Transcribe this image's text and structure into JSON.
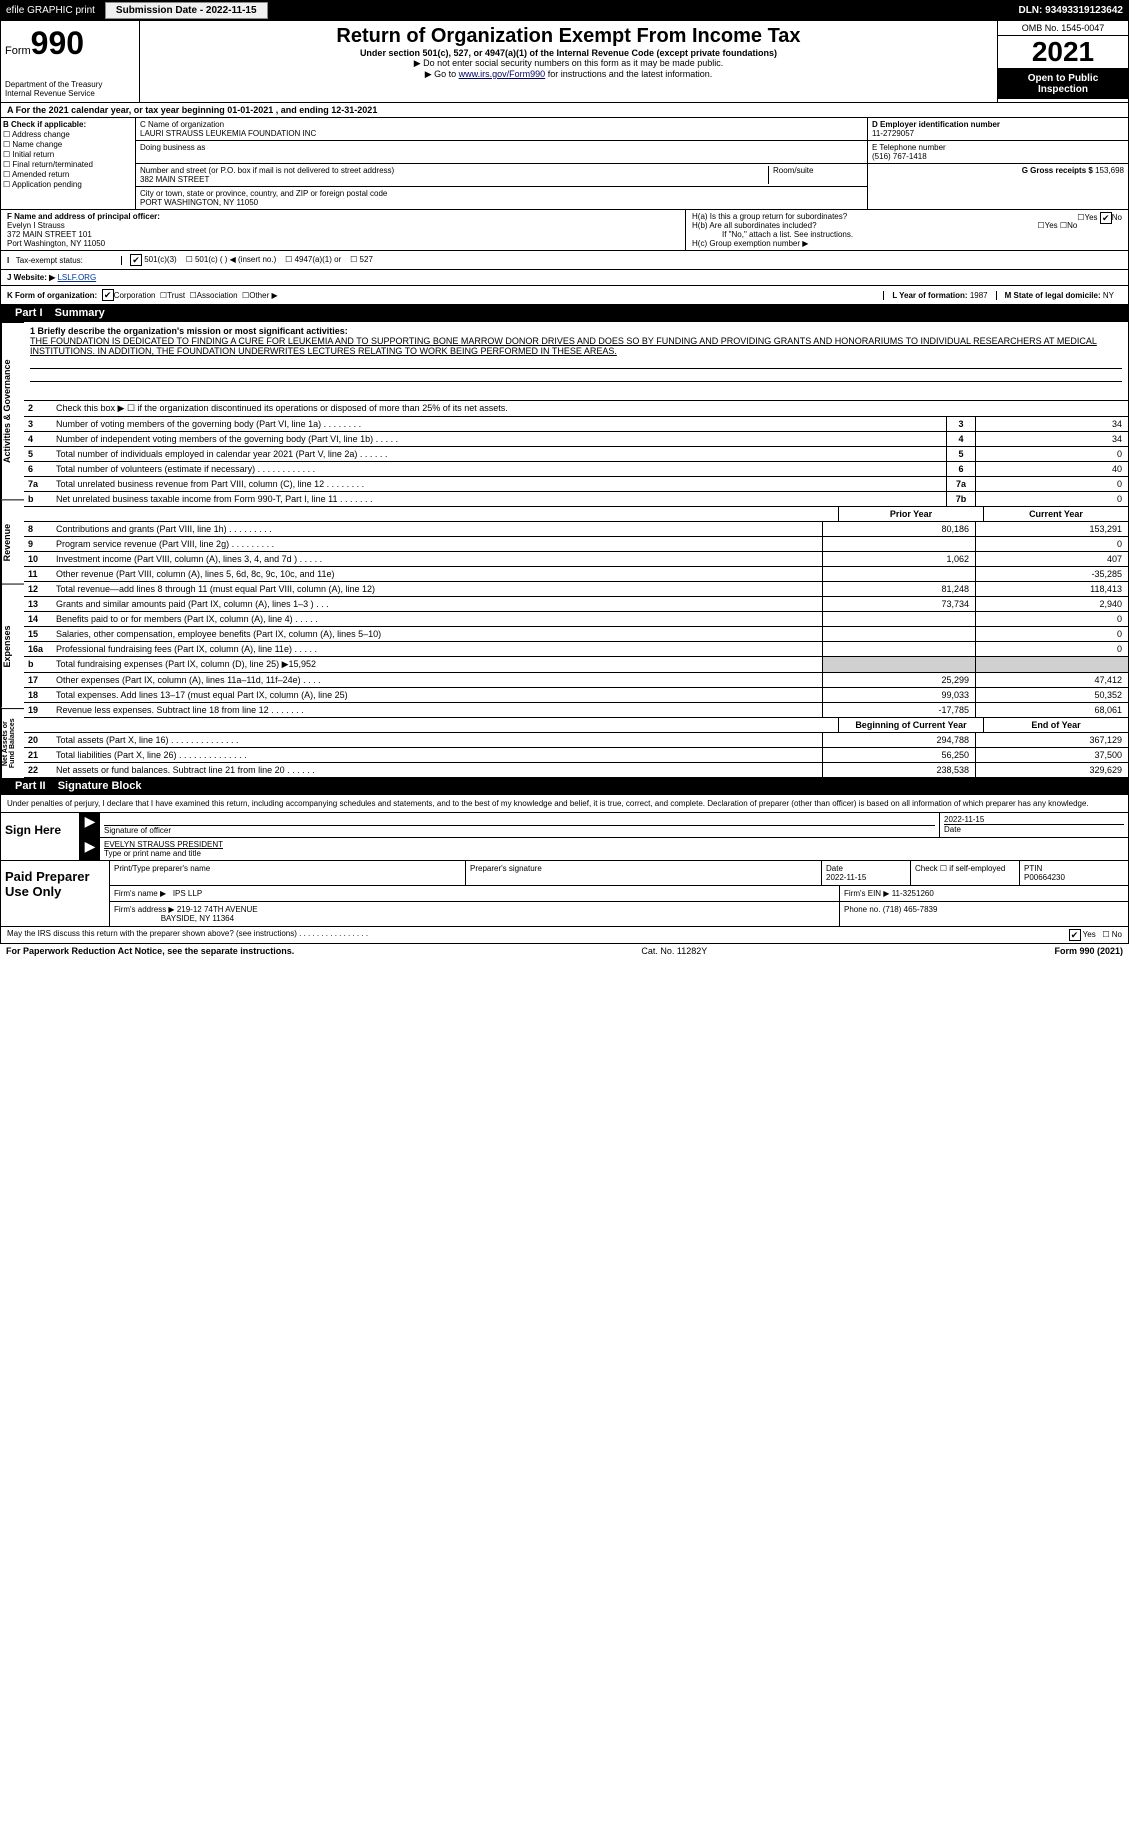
{
  "topbar": {
    "efile": "efile GRAPHIC print",
    "submission": "Submission Date - 2022-11-15",
    "dln": "DLN: 93493319123642"
  },
  "header": {
    "form_word": "Form",
    "form_num": "990",
    "title": "Return of Organization Exempt From Income Tax",
    "sub": "Under section 501(c), 527, or 4947(a)(1) of the Internal Revenue Code (except private foundations)",
    "note1": "▶ Do not enter social security numbers on this form as it may be made public.",
    "note2_pre": "▶ Go to ",
    "note2_link": "www.irs.gov/Form990",
    "note2_post": " for instructions and the latest information.",
    "dept": "Department of the Treasury",
    "irs": "Internal Revenue Service",
    "omb": "OMB No. 1545-0047",
    "year": "2021",
    "inspect": "Open to Public Inspection"
  },
  "rowA": "A For the 2021 calendar year, or tax year beginning 01-01-2021    , and ending 12-31-2021",
  "boxB": {
    "title": "B Check if applicable:",
    "opts": [
      "Address change",
      "Name change",
      "Initial return",
      "Final return/terminated",
      "Amended return",
      "Application pending"
    ]
  },
  "boxC": {
    "label": "C Name of organization",
    "name": "LAURI STRAUSS LEUKEMIA FOUNDATION INC",
    "dba": "Doing business as",
    "street_lbl": "Number and street (or P.O. box if mail is not delivered to street address)",
    "room": "Room/suite",
    "street": "382 MAIN STREET",
    "city_lbl": "City or town, state or province, country, and ZIP or foreign postal code",
    "city": "PORT WASHINGTON, NY  11050"
  },
  "boxD": {
    "label": "D Employer identification number",
    "val": "11-2729057"
  },
  "boxE": {
    "label": "E Telephone number",
    "val": "(516) 767-1418"
  },
  "boxG": {
    "label": "G Gross receipts $",
    "val": "153,698"
  },
  "boxF": {
    "label": "F  Name and address of principal officer:",
    "name": "Evelyn I Strauss",
    "addr1": "372 MAIN STREET 101",
    "addr2": "Port Washington, NY  11050"
  },
  "boxH": {
    "a": "H(a)  Is this a group return for subordinates?",
    "b": "H(b)  Are all subordinates included?",
    "note": "If \"No,\" attach a list. See instructions.",
    "c": "H(c)  Group exemption number ▶",
    "yes": "Yes",
    "no": "No"
  },
  "taxStatus": {
    "label": "Tax-exempt status:",
    "opts": [
      "501(c)(3)",
      "501(c) (   ) ◀ (insert no.)",
      "4947(a)(1) or",
      "527"
    ]
  },
  "boxJ": {
    "label": "J   Website: ▶",
    "val": "LSLF.ORG"
  },
  "boxK": {
    "label": "K Form of organization:",
    "opts": [
      "Corporation",
      "Trust",
      "Association",
      "Other ▶"
    ]
  },
  "boxL": {
    "label": "L Year of formation:",
    "val": "1987"
  },
  "boxM": {
    "label": "M State of legal domicile:",
    "val": "NY"
  },
  "part1": {
    "title": "Part I",
    "name": "Summary",
    "vtabs": [
      "Activities & Governance",
      "Revenue",
      "Expenses",
      "Net Assets or Fund Balances"
    ],
    "mission_lbl": "1  Briefly describe the organization's mission or most significant activities:",
    "mission": "THE FOUNDATION IS DEDICATED TO FINDING A CURE FOR LEUKEMIA AND TO SUPPORTING BONE MARROW DONOR DRIVES AND DOES SO BY FUNDING AND PROVIDING GRANTS AND HONORARIUMS TO INDIVIDUAL RESEARCHERS AT MEDICAL INSTITUTIONS. IN ADDITION, THE FOUNDATION UNDERWRITES LECTURES RELATING TO WORK BEING PERFORMED IN THESE AREAS.",
    "line2": "Check this box ▶ ☐  if the organization discontinued its operations or disposed of more than 25% of its net assets.",
    "govLines": [
      {
        "n": "3",
        "d": "Number of voting members of the governing body (Part VI, line 1a)   .    .    .    .    .    .    .    .",
        "b": "3",
        "v": "34"
      },
      {
        "n": "4",
        "d": "Number of independent voting members of the governing body (Part VI, line 1b)   .    .    .    .    .",
        "b": "4",
        "v": "34"
      },
      {
        "n": "5",
        "d": "Total number of individuals employed in calendar year 2021 (Part V, line 2a)   .    .    .    .    .    .",
        "b": "5",
        "v": "0"
      },
      {
        "n": "6",
        "d": "Total number of volunteers (estimate if necessary)   .    .    .    .    .    .    .    .    .    .    .    .",
        "b": "6",
        "v": "40"
      },
      {
        "n": "7a",
        "d": "Total unrelated business revenue from Part VIII, column (C), line 12   .    .    .    .    .    .    .    .",
        "b": "7a",
        "v": "0"
      },
      {
        "n": " b",
        "d": "Net unrelated business taxable income from Form 990-T, Part I, line 11   .    .    .    .    .    .    .",
        "b": "7b",
        "v": "0"
      }
    ],
    "hdr": {
      "prior": "Prior Year",
      "curr": "Current Year",
      "beg": "Beginning of Current Year",
      "end": "End of Year"
    },
    "revLines": [
      {
        "n": "8",
        "d": "Contributions and grants (Part VIII, line 1h)   .    .    .    .    .    .    .    .    .",
        "p": "80,186",
        "c": "153,291"
      },
      {
        "n": "9",
        "d": "Program service revenue (Part VIII, line 2g)   .    .    .    .    .    .    .    .    .",
        "p": "",
        "c": "0"
      },
      {
        "n": "10",
        "d": "Investment income (Part VIII, column (A), lines 3, 4, and 7d )   .    .    .    .    .",
        "p": "1,062",
        "c": "407"
      },
      {
        "n": "11",
        "d": "Other revenue (Part VIII, column (A), lines 5, 6d, 8c, 9c, 10c, and 11e)",
        "p": "",
        "c": "-35,285"
      },
      {
        "n": "12",
        "d": "Total revenue—add lines 8 through 11 (must equal Part VIII, column (A), line 12)",
        "p": "81,248",
        "c": "118,413"
      }
    ],
    "expLines": [
      {
        "n": "13",
        "d": "Grants and similar amounts paid (Part IX, column (A), lines 1–3 )   .    .    .",
        "p": "73,734",
        "c": "2,940"
      },
      {
        "n": "14",
        "d": "Benefits paid to or for members (Part IX, column (A), line 4)   .    .    .    .    .",
        "p": "",
        "c": "0"
      },
      {
        "n": "15",
        "d": "Salaries, other compensation, employee benefits (Part IX, column (A), lines 5–10)",
        "p": "",
        "c": "0"
      },
      {
        "n": "16a",
        "d": "Professional fundraising fees (Part IX, column (A), line 11e)   .    .    .    .    .",
        "p": "",
        "c": "0"
      },
      {
        "n": " b",
        "d": "Total fundraising expenses (Part IX, column (D), line 25) ▶15,952",
        "p": "shade",
        "c": "shade"
      },
      {
        "n": "17",
        "d": "Other expenses (Part IX, column (A), lines 11a–11d, 11f–24e)   .    .    .    .",
        "p": "25,299",
        "c": "47,412"
      },
      {
        "n": "18",
        "d": "Total expenses. Add lines 13–17 (must equal Part IX, column (A), line 25)",
        "p": "99,033",
        "c": "50,352"
      },
      {
        "n": "19",
        "d": "Revenue less expenses. Subtract line 18 from line 12   .    .    .    .    .    .    .",
        "p": "-17,785",
        "c": "68,061"
      }
    ],
    "netLines": [
      {
        "n": "20",
        "d": "Total assets (Part X, line 16)   .    .    .    .    .    .    .    .    .    .    .    .    .    .",
        "p": "294,788",
        "c": "367,129"
      },
      {
        "n": "21",
        "d": "Total liabilities (Part X, line 26)   .    .    .    .    .    .    .    .    .    .    .    .    .    .",
        "p": "56,250",
        "c": "37,500"
      },
      {
        "n": "22",
        "d": "Net assets or fund balances. Subtract line 21 from line 20   .    .    .    .    .    .",
        "p": "238,538",
        "c": "329,629"
      }
    ]
  },
  "part2": {
    "title": "Part II",
    "name": "Signature Block",
    "note": "Under penalties of perjury, I declare that I have examined this return, including accompanying schedules and statements, and to the best of my knowledge and belief, it is true, correct, and complete. Declaration of preparer (other than officer) is based on all information of which preparer has any knowledge.",
    "sign": "Sign Here",
    "sig_lbl": "Signature of officer",
    "date_lbl": "Date",
    "date": "2022-11-15",
    "officer": "EVELYN STRAUSS  PRESIDENT",
    "officer_lbl": "Type or print name and title",
    "paid": "Paid Preparer Use Only",
    "prep": {
      "name_lbl": "Print/Type preparer's name",
      "sig_lbl": "Preparer's signature",
      "date_lbl": "Date",
      "date": "2022-11-15",
      "check": "Check ☐ if self-employed",
      "ptin_lbl": "PTIN",
      "ptin": "P00664230",
      "firm_lbl": "Firm's name    ▶",
      "firm": "IPS LLP",
      "ein_lbl": "Firm's EIN ▶",
      "ein": "11-3251260",
      "addr_lbl": "Firm's address ▶",
      "addr1": "219-12 74TH AVENUE",
      "addr2": "BAYSIDE, NY  11364",
      "phone_lbl": "Phone no.",
      "phone": "(718) 465-7839"
    },
    "may": "May the IRS discuss this return with the preparer shown above? (see instructions)   .    .    .    .    .    .    .    .    .    .    .    .    .    .    .    .",
    "yes": "Yes",
    "no": "No"
  },
  "bottom": {
    "left": "For Paperwork Reduction Act Notice, see the separate instructions.",
    "mid": "Cat. No. 11282Y",
    "right": "Form 990 (2021)"
  }
}
